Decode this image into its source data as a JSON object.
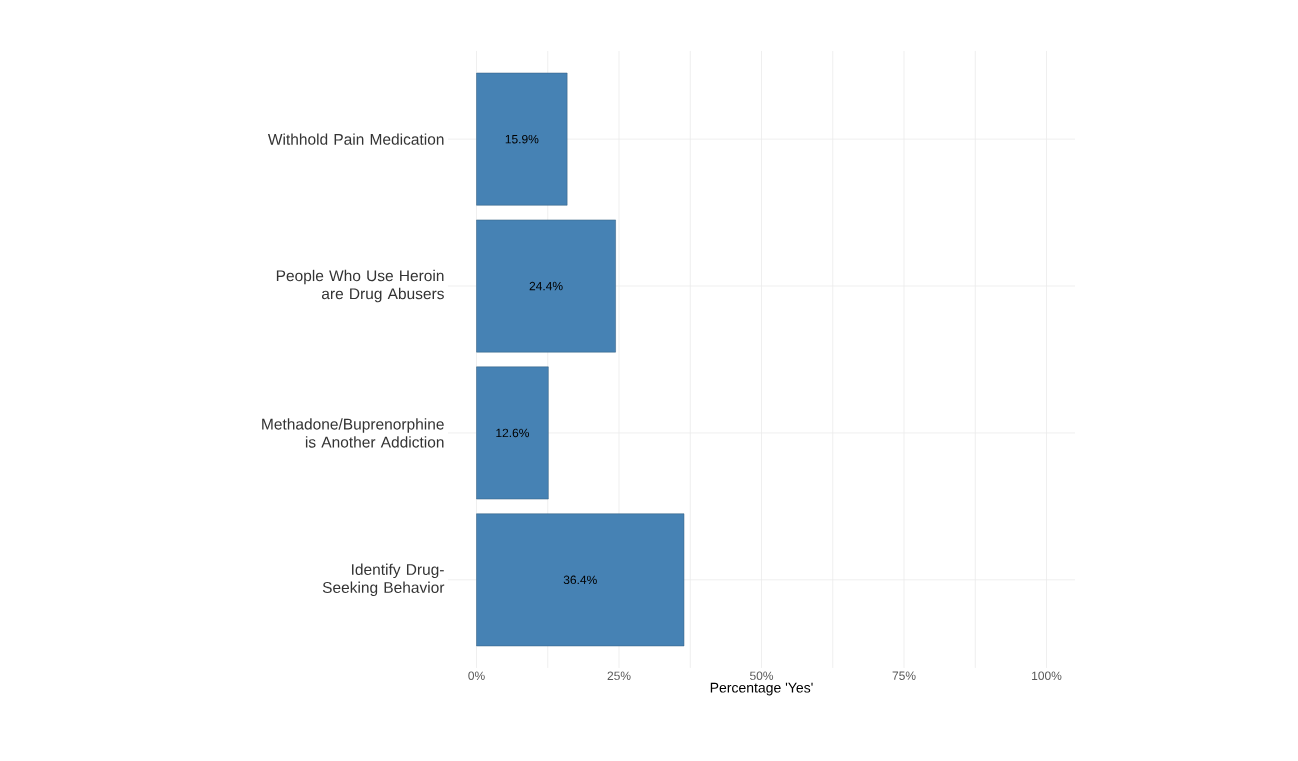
{
  "chart_data": {
    "type": "bar",
    "orientation": "horizontal",
    "xlabel": "Percentage 'Yes'",
    "categories": [
      "Withhold Pain Medication",
      "People Who Use Heroin are Drug Abusers",
      "Methadone/Buprenorphine is Another Addiction",
      "Identify Drug-Seeking Behavior"
    ],
    "values": [
      15.9,
      24.4,
      12.6,
      36.4
    ],
    "value_labels": [
      "15.9%",
      "24.4%",
      "12.6%",
      "36.4%"
    ],
    "color": "#4682b4",
    "xlim": [
      -5,
      105
    ],
    "xticks": [
      {
        "value": 0,
        "label": "0%"
      },
      {
        "value": 25,
        "label": "25%"
      },
      {
        "value": 50,
        "label": "50%"
      },
      {
        "value": 75,
        "label": "75%"
      },
      {
        "value": 100,
        "label": "100%"
      }
    ],
    "grid": true
  }
}
